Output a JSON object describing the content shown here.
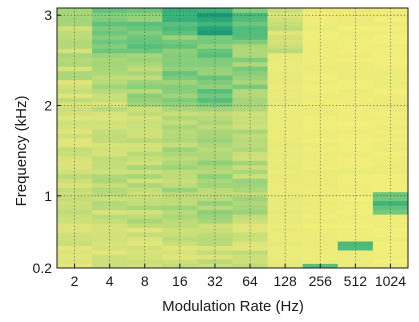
{
  "chart_data": {
    "type": "heatmap",
    "xlabel": "Modulation Rate (Hz)",
    "ylabel": "Frequency (kHz)",
    "x_categories": [
      "2",
      "4",
      "8",
      "16",
      "32",
      "64",
      "128",
      "256",
      "512",
      "1024"
    ],
    "y_ticks": [
      {
        "value": 0.2,
        "label": "0.2"
      },
      {
        "value": 1,
        "label": "1"
      },
      {
        "value": 2,
        "label": "2"
      },
      {
        "value": 3,
        "label": "3"
      }
    ],
    "ylim": [
      0.2,
      3.08
    ],
    "grid": "dotted",
    "colorscale": [
      "#f3ef7a",
      "#dfe57a",
      "#b8da78",
      "#7fcc7c",
      "#3fb77a",
      "#1e9a77"
    ],
    "columns": [
      {
        "x": "2",
        "base": 0.2,
        "bands": [
          {
            "y": [
              0.2,
              0.7
            ],
            "level": 0.22
          },
          {
            "y": [
              0.7,
              1.4
            ],
            "level": 0.32
          },
          {
            "y": [
              1.4,
              2.3
            ],
            "level": 0.28
          },
          {
            "y": [
              2.3,
              2.9
            ],
            "level": 0.35
          },
          {
            "y": [
              2.9,
              3.08
            ],
            "level": 0.55
          }
        ]
      },
      {
        "x": "4",
        "base": 0.25,
        "bands": [
          {
            "y": [
              0.2,
              0.7
            ],
            "level": 0.24
          },
          {
            "y": [
              0.7,
              1.4
            ],
            "level": 0.34
          },
          {
            "y": [
              1.4,
              2.1
            ],
            "level": 0.3
          },
          {
            "y": [
              2.1,
              2.6
            ],
            "level": 0.42
          },
          {
            "y": [
              2.6,
              3.08
            ],
            "level": 0.6
          }
        ]
      },
      {
        "x": "8",
        "base": 0.27,
        "bands": [
          {
            "y": [
              0.2,
              0.7
            ],
            "level": 0.25
          },
          {
            "y": [
              0.7,
              1.4
            ],
            "level": 0.36
          },
          {
            "y": [
              1.4,
              2.0
            ],
            "level": 0.32
          },
          {
            "y": [
              2.0,
              2.6
            ],
            "level": 0.45
          },
          {
            "y": [
              2.6,
              3.08
            ],
            "level": 0.62
          }
        ]
      },
      {
        "x": "16",
        "base": 0.3,
        "bands": [
          {
            "y": [
              0.2,
              0.7
            ],
            "level": 0.28
          },
          {
            "y": [
              0.7,
              1.4
            ],
            "level": 0.42
          },
          {
            "y": [
              1.4,
              2.0
            ],
            "level": 0.4
          },
          {
            "y": [
              2.0,
              2.8
            ],
            "level": 0.58
          },
          {
            "y": [
              2.8,
              3.08
            ],
            "level": 0.8
          }
        ]
      },
      {
        "x": "32",
        "base": 0.32,
        "bands": [
          {
            "y": [
              0.2,
              0.7
            ],
            "level": 0.3
          },
          {
            "y": [
              0.7,
              1.4
            ],
            "level": 0.45
          },
          {
            "y": [
              1.4,
              2.0
            ],
            "level": 0.44
          },
          {
            "y": [
              2.0,
              2.8
            ],
            "level": 0.62
          },
          {
            "y": [
              2.8,
              3.08
            ],
            "level": 0.9
          }
        ]
      },
      {
        "x": "64",
        "base": 0.3,
        "bands": [
          {
            "y": [
              0.2,
              0.7
            ],
            "level": 0.26
          },
          {
            "y": [
              0.7,
              1.4
            ],
            "level": 0.4
          },
          {
            "y": [
              1.4,
              2.0
            ],
            "level": 0.38
          },
          {
            "y": [
              2.0,
              2.7
            ],
            "level": 0.52
          },
          {
            "y": [
              2.7,
              3.08
            ],
            "level": 0.68
          }
        ]
      },
      {
        "x": "128",
        "base": 0.1,
        "bands": [
          {
            "y": [
              2.6,
              3.08
            ],
            "level": 0.28
          }
        ]
      },
      {
        "x": "256",
        "base": 0.05,
        "bands": [
          {
            "y": [
              0.2,
              0.26
            ],
            "level": 0.65
          }
        ]
      },
      {
        "x": "512",
        "base": 0.04,
        "bands": [
          {
            "y": [
              0.4,
              0.48
            ],
            "level": 0.78
          }
        ]
      },
      {
        "x": "1024",
        "base": 0.04,
        "bands": [
          {
            "y": [
              0.82,
              1.03
            ],
            "level": 0.72
          }
        ]
      }
    ]
  }
}
